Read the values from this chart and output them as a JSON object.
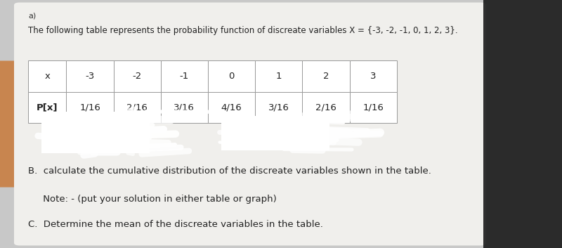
{
  "intro_text": "The following table represents the probability function of discreate variables X = {-3, -2, -1, 0, 1, 2, 3}.",
  "x_values": [
    "-3",
    "-2",
    "-1",
    "0",
    "1",
    "2",
    "3"
  ],
  "p_values": [
    "1/16",
    "2/16",
    "3/16",
    "4/16",
    "3/16",
    "2/16",
    "1/16"
  ],
  "row_headers": [
    "x",
    "P[x]"
  ],
  "section_b_text": "B.  calculate the cumulative distribution of the discreate variables shown in the table.",
  "note_text": "     Note: - (put your solution in either table or graph)",
  "section_c_text": "C.  Determine the mean of the discreate variables in the table.",
  "bg_color": "#c8c8c8",
  "paper_color": "#f0efec",
  "table_line_color": "#999999",
  "font_size_intro": 8.5,
  "font_size_table": 9.5,
  "font_size_bottom": 9.5,
  "dark_corner_color": "#1a1a1a"
}
